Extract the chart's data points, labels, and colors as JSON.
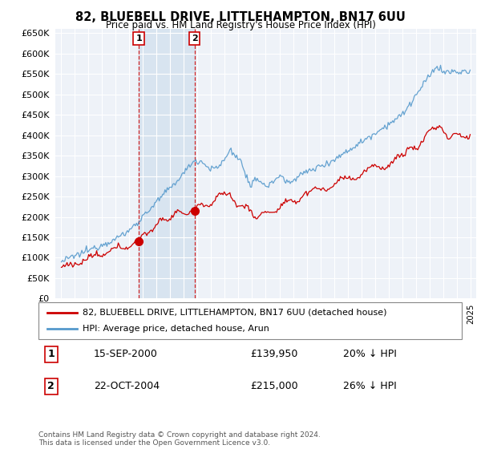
{
  "title": "82, BLUEBELL DRIVE, LITTLEHAMPTON, BN17 6UU",
  "subtitle": "Price paid vs. HM Land Registry's House Price Index (HPI)",
  "legend_line1": "82, BLUEBELL DRIVE, LITTLEHAMPTON, BN17 6UU (detached house)",
  "legend_line2": "HPI: Average price, detached house, Arun",
  "red_color": "#cc0000",
  "blue_color": "#5599cc",
  "annotation1_label": "1",
  "annotation1_date": "15-SEP-2000",
  "annotation1_price": "£139,950",
  "annotation1_hpi": "20% ↓ HPI",
  "annotation2_label": "2",
  "annotation2_date": "22-OCT-2004",
  "annotation2_price": "£215,000",
  "annotation2_hpi": "26% ↓ HPI",
  "footnote": "Contains HM Land Registry data © Crown copyright and database right 2024.\nThis data is licensed under the Open Government Licence v3.0.",
  "ylim": [
    0,
    660000
  ],
  "yticks": [
    0,
    50000,
    100000,
    150000,
    200000,
    250000,
    300000,
    350000,
    400000,
    450000,
    500000,
    550000,
    600000,
    650000
  ],
  "background_color": "#ffffff",
  "plot_bg_color": "#eef2f8",
  "grid_color": "#ffffff",
  "shade_color": "#d8e4f0"
}
